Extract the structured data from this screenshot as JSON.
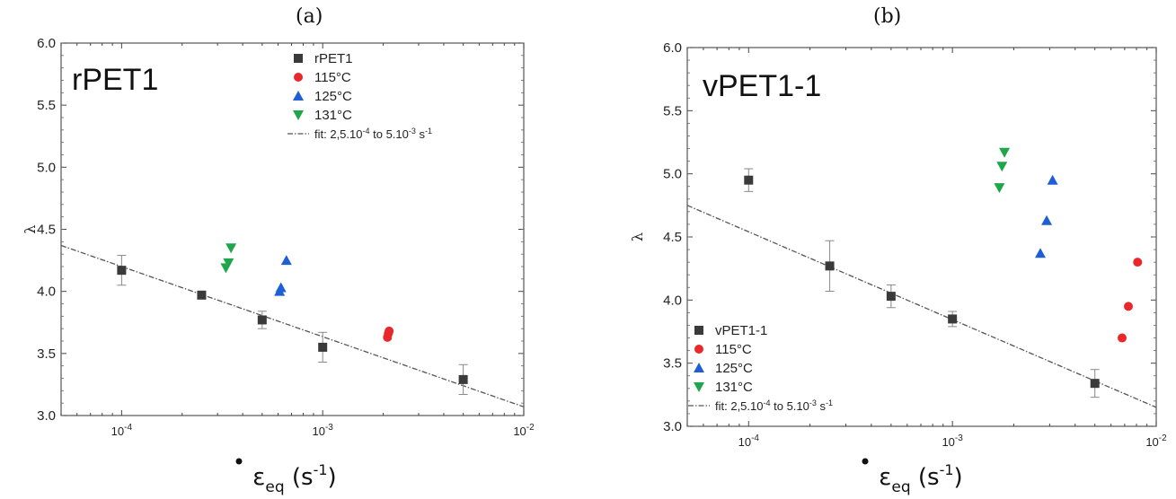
{
  "panels": [
    {
      "letter": "(a)",
      "title": "rPET1",
      "ylabel": "λ",
      "xlabel_symbol": "ε",
      "xlabel_sub": "eq",
      "xlabel_unit": "(s",
      "xlabel_exp": "-1",
      "xlabel_close": ")",
      "legend_placement": "top-right"
    },
    {
      "letter": "(b)",
      "title": "vPET1-1",
      "ylabel": "λ",
      "xlabel_symbol": "ε",
      "xlabel_sub": "eq",
      "xlabel_unit": "(s",
      "xlabel_exp": "-1",
      "xlabel_close": ")",
      "legend_placement": "bottom-left"
    }
  ],
  "chart_data": [
    {
      "type": "scatter",
      "title": "rPET1",
      "ylabel": "λ",
      "xlabel": "ε̇eq (s-1)",
      "xscale": "log",
      "xlim": [
        5e-05,
        0.01
      ],
      "ylim": [
        3.0,
        6.0
      ],
      "x_ticks": [
        {
          "v": 0.0001,
          "base": "10",
          "exp": "-4"
        },
        {
          "v": 0.001,
          "base": "10",
          "exp": "-3"
        },
        {
          "v": 0.01,
          "base": "10",
          "exp": "-2"
        }
      ],
      "y_ticks": [
        "3.0",
        "3.5",
        "4.0",
        "4.5",
        "5.0",
        "5.5",
        "6.0"
      ],
      "legend": [
        "rPET1",
        "115°C",
        "125°C",
        "131°C",
        "fit: 2,5.10-4 to 5.10-3 s-1"
      ],
      "series": [
        {
          "name": "rPET1",
          "marker": "square",
          "color": "#3a3a3a",
          "points": [
            {
              "x": 0.0001,
              "y": 4.17,
              "err": 0.12
            },
            {
              "x": 0.00025,
              "y": 3.97,
              "err": 0.02
            },
            {
              "x": 0.0005,
              "y": 3.77,
              "err": 0.07
            },
            {
              "x": 0.001,
              "y": 3.55,
              "err": 0.12
            },
            {
              "x": 0.005,
              "y": 3.29,
              "err": 0.12
            }
          ]
        },
        {
          "name": "115°C",
          "marker": "circle",
          "color": "#e8282a",
          "points": [
            {
              "x": 0.0021,
              "y": 3.63
            },
            {
              "x": 0.00212,
              "y": 3.66
            },
            {
              "x": 0.00214,
              "y": 3.68
            }
          ]
        },
        {
          "name": "125°C",
          "marker": "triangle-up",
          "color": "#1f5fd6",
          "points": [
            {
              "x": 0.00061,
              "y": 4.0
            },
            {
              "x": 0.00062,
              "y": 4.03
            },
            {
              "x": 0.00066,
              "y": 4.25
            }
          ]
        },
        {
          "name": "131°C",
          "marker": "triangle-down",
          "color": "#1fa64a",
          "points": [
            {
              "x": 0.00033,
              "y": 4.19
            },
            {
              "x": 0.00034,
              "y": 4.23
            },
            {
              "x": 0.00035,
              "y": 4.35
            }
          ]
        }
      ],
      "fit": {
        "name": "fit: 2,5.10-4 to 5.10-3 s-1",
        "x": [
          5e-05,
          0.01
        ],
        "y": [
          4.37,
          3.07
        ]
      }
    },
    {
      "type": "scatter",
      "title": "vPET1-1",
      "ylabel": "λ",
      "xlabel": "ε̇eq (s-1)",
      "xscale": "log",
      "xlim": [
        5e-05,
        0.01
      ],
      "ylim": [
        3.0,
        6.0
      ],
      "x_ticks": [
        {
          "v": 0.0001,
          "base": "10",
          "exp": "-4"
        },
        {
          "v": 0.001,
          "base": "10",
          "exp": "-3"
        },
        {
          "v": 0.01,
          "base": "10",
          "exp": "-2"
        }
      ],
      "y_ticks": [
        "3.0",
        "3.5",
        "4.0",
        "4.5",
        "5.0",
        "5.5",
        "6.0"
      ],
      "legend": [
        "vPET1-1",
        "115°C",
        "125°C",
        "131°C",
        "fit: 2,5.10-4 to 5.10-3 s-1"
      ],
      "series": [
        {
          "name": "vPET1-1",
          "marker": "square",
          "color": "#3a3a3a",
          "points": [
            {
              "x": 0.0001,
              "y": 4.95,
              "err": 0.09
            },
            {
              "x": 0.00025,
              "y": 4.27,
              "err": 0.2
            },
            {
              "x": 0.0005,
              "y": 4.03,
              "err": 0.09
            },
            {
              "x": 0.001,
              "y": 3.85,
              "err": 0.06
            },
            {
              "x": 0.005,
              "y": 3.34,
              "err": 0.11
            }
          ]
        },
        {
          "name": "115°C",
          "marker": "circle",
          "color": "#e8282a",
          "points": [
            {
              "x": 0.0068,
              "y": 3.7
            },
            {
              "x": 0.0073,
              "y": 3.95
            },
            {
              "x": 0.0081,
              "y": 4.3
            }
          ]
        },
        {
          "name": "125°C",
          "marker": "triangle-up",
          "color": "#1f5fd6",
          "points": [
            {
              "x": 0.0027,
              "y": 4.37
            },
            {
              "x": 0.0029,
              "y": 4.63
            },
            {
              "x": 0.0031,
              "y": 4.95
            }
          ]
        },
        {
          "name": "131°C",
          "marker": "triangle-down",
          "color": "#1fa64a",
          "points": [
            {
              "x": 0.0017,
              "y": 4.89
            },
            {
              "x": 0.00175,
              "y": 5.06
            },
            {
              "x": 0.0018,
              "y": 5.17
            }
          ]
        }
      ],
      "fit": {
        "name": "fit: 2,5.10-4 to 5.10-3 s-1",
        "x": [
          5e-05,
          0.01
        ],
        "y": [
          4.75,
          3.15
        ]
      }
    }
  ]
}
